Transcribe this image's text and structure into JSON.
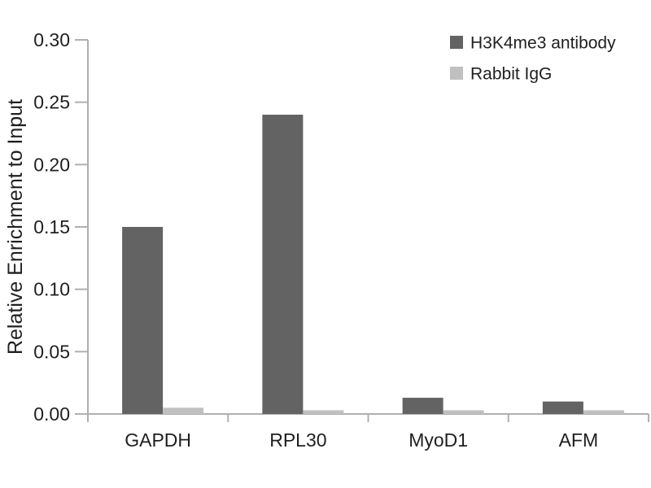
{
  "figure": {
    "background_color": "#ffffff"
  },
  "chart_data": {
    "type": "bar",
    "title": "",
    "xlabel": "",
    "ylabel": "Relative Enrichment to Input",
    "categories": [
      "GAPDH",
      "RPL30",
      "MyoD1",
      "AFM"
    ],
    "series": [
      {
        "name": "H3K4me3 antibody",
        "color": "#636363",
        "values": [
          0.15,
          0.24,
          0.013,
          0.01
        ]
      },
      {
        "name": "Rabbit IgG",
        "color": "#c0c0c0",
        "values": [
          0.005,
          0.003,
          0.003,
          0.003
        ]
      }
    ],
    "ylim": [
      0,
      0.3
    ],
    "ytick_step": 0.05,
    "ytick_labels": [
      "0.00",
      "0.05",
      "0.10",
      "0.15",
      "0.20",
      "0.25",
      "0.30"
    ],
    "grid": false,
    "legend_position": "top-right",
    "axis_color": "#b0b0b0",
    "text_color": "#1f1f1f"
  }
}
